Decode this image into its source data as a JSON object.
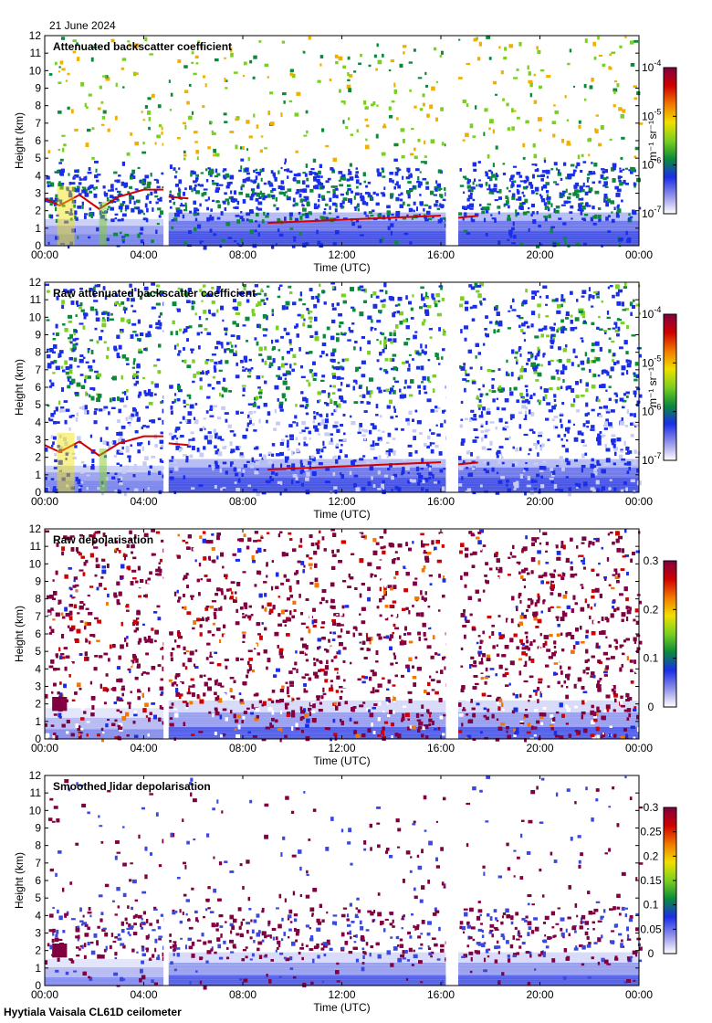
{
  "date_label": "21 June 2024",
  "footer_label": "Hyytiala Vaisala CL61D ceilometer",
  "colors": {
    "colormap": [
      "#ffffff",
      "#9090e8",
      "#1a2ee8",
      "#0a8a3a",
      "#7ad020",
      "#f0e000",
      "#f07800",
      "#d00000",
      "#800040"
    ],
    "dark_blue": "#1a2ee8",
    "cloud_red": "#d00000",
    "gap": "#ffffff"
  },
  "chart_data": [
    {
      "type": "heatmap",
      "title": "Attenuated backscatter coefficient",
      "xlabel": "Time (UTC)",
      "ylabel": "Height (km)",
      "xlim": [
        0,
        24
      ],
      "ylim": [
        0,
        12
      ],
      "x_ticks": [
        "00:00",
        "04:00",
        "08:00",
        "12:00",
        "16:00",
        "20:00",
        "00:00"
      ],
      "y_ticks": [
        "0",
        "1",
        "2",
        "3",
        "4",
        "5",
        "6",
        "7",
        "8",
        "9",
        "10",
        "11",
        "12"
      ],
      "data_gaps_hours": [
        [
          4.8,
          5.0
        ],
        [
          16.2,
          16.7
        ]
      ],
      "colorbar": {
        "scale": "log",
        "range": [
          1e-07,
          0.0001
        ],
        "ticks": [
          {
            "base": "10",
            "exp": "-4"
          },
          {
            "base": "10",
            "exp": "-5"
          },
          {
            "base": "10",
            "exp": "-6"
          },
          {
            "base": "10",
            "exp": "-7"
          }
        ],
        "unit": "m⁻¹ sr⁻¹"
      }
    },
    {
      "type": "heatmap",
      "title": "Raw attenuated backscatter coefficient",
      "xlabel": "Time (UTC)",
      "ylabel": "Height (km)",
      "xlim": [
        0,
        24
      ],
      "ylim": [
        0,
        12
      ],
      "x_ticks": [
        "00:00",
        "04:00",
        "08:00",
        "12:00",
        "16:00",
        "20:00",
        "00:00"
      ],
      "y_ticks": [
        "0",
        "1",
        "2",
        "3",
        "4",
        "5",
        "6",
        "7",
        "8",
        "9",
        "10",
        "11",
        "12"
      ],
      "data_gaps_hours": [
        [
          4.8,
          5.0
        ],
        [
          16.2,
          16.7
        ]
      ],
      "colorbar": {
        "scale": "log",
        "range": [
          1e-07,
          0.0001
        ],
        "ticks": [
          {
            "base": "10",
            "exp": "-4"
          },
          {
            "base": "10",
            "exp": "-5"
          },
          {
            "base": "10",
            "exp": "-6"
          },
          {
            "base": "10",
            "exp": "-7"
          }
        ],
        "unit": "m⁻¹ sr⁻¹"
      }
    },
    {
      "type": "heatmap",
      "title": "Raw depolarisation",
      "xlabel": "Time (UTC)",
      "ylabel": "Height (km)",
      "xlim": [
        0,
        24
      ],
      "ylim": [
        0,
        12
      ],
      "x_ticks": [
        "00:00",
        "04:00",
        "08:00",
        "12:00",
        "16:00",
        "20:00",
        "00:00"
      ],
      "y_ticks": [
        "0",
        "1",
        "2",
        "3",
        "4",
        "5",
        "6",
        "7",
        "8",
        "9",
        "10",
        "11",
        "12"
      ],
      "data_gaps_hours": [
        [
          4.8,
          5.0
        ],
        [
          16.2,
          16.7
        ]
      ],
      "colorbar": {
        "scale": "linear",
        "range": [
          0,
          0.3
        ],
        "ticks": [
          "0.3",
          "0.2",
          "0.1",
          "0"
        ],
        "unit": ""
      }
    },
    {
      "type": "heatmap",
      "title": "Smoothed lidar depolarisation",
      "xlabel": "Time (UTC)",
      "ylabel": "Height (km)",
      "xlim": [
        0,
        24
      ],
      "ylim": [
        0,
        12
      ],
      "x_ticks": [
        "00:00",
        "04:00",
        "08:00",
        "12:00",
        "16:00",
        "20:00",
        "00:00"
      ],
      "y_ticks": [
        "0",
        "1",
        "2",
        "3",
        "4",
        "5",
        "6",
        "7",
        "8",
        "9",
        "10",
        "11",
        "12"
      ],
      "data_gaps_hours": [
        [
          4.8,
          5.0
        ],
        [
          16.2,
          16.7
        ]
      ],
      "colorbar": {
        "scale": "linear",
        "range": [
          0,
          0.3
        ],
        "ticks": [
          "0.3",
          "0.25",
          "0.2",
          "0.15",
          "0.1",
          "0.05",
          "0"
        ],
        "unit": ""
      }
    }
  ]
}
